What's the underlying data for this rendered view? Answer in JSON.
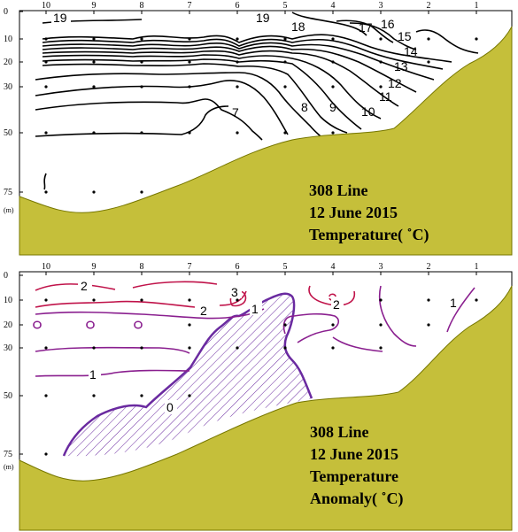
{
  "colors": {
    "seabed": "#c5bf3a",
    "seabed_stroke": "#777700",
    "contour_black": "#000000",
    "anomaly_red": "#c0134a",
    "anomaly_purple": "#8a1f8f",
    "anomaly_zero": "#6a2aa0"
  },
  "chart_data": [
    {
      "type": "contour",
      "title": [
        "308 Line",
        "12 June 2015",
        "Temperature( ˚C)"
      ],
      "x_ticks": [
        "10",
        "9",
        "8",
        "7",
        "6",
        "5",
        "4",
        "3",
        "2",
        "1"
      ],
      "y_ticks": [
        "0",
        "10",
        "20",
        "30",
        "50",
        "75"
      ],
      "y_unit": "(m)",
      "contour_labels": [
        "19",
        "19",
        "18",
        "17",
        "16",
        "15",
        "14",
        "13",
        "12",
        "11",
        "10",
        "9",
        "8",
        "7"
      ]
    },
    {
      "type": "contour",
      "title": [
        "308 Line",
        "12 June 2015",
        "Temperature",
        "Anomaly( ˚C)"
      ],
      "x_ticks": [
        "10",
        "9",
        "8",
        "7",
        "6",
        "5",
        "4",
        "3",
        "2",
        "1"
      ],
      "y_ticks": [
        "0",
        "10",
        "20",
        "30",
        "50",
        "75"
      ],
      "y_unit": "(m)",
      "contour_labels": [
        "2",
        "3",
        "2",
        "2",
        "1",
        "1",
        "1",
        "0"
      ]
    }
  ]
}
